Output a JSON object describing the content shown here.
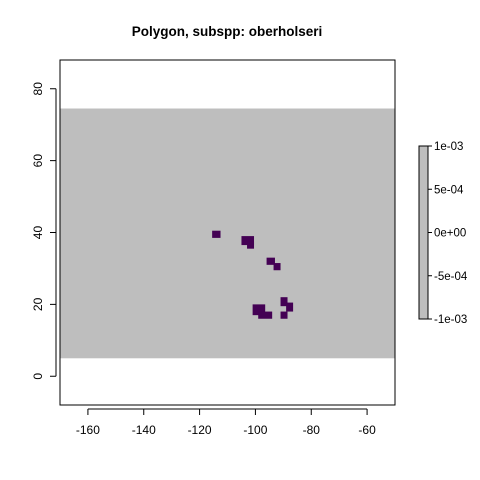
{
  "chart_data": {
    "type": "heatmap",
    "title": "Polygon, subspp: oberholseri",
    "xlabel": "",
    "ylabel": "",
    "xlim": [
      -170,
      -50
    ],
    "ylim": [
      -8,
      88
    ],
    "x_ticks": [
      -160,
      -140,
      -120,
      -100,
      -80,
      -60
    ],
    "y_ticks": [
      0,
      20,
      40,
      60,
      80
    ],
    "x_tick_labels": [
      "-160",
      "-140",
      "-120",
      "-100",
      "-80",
      "-60"
    ],
    "y_tick_labels": [
      "0",
      "20",
      "40",
      "60",
      "80"
    ],
    "background_raster": {
      "xmin": -170,
      "xmax": -50,
      "ymin": 5,
      "ymax": 74.5,
      "value": 0,
      "color": "#bebebe"
    },
    "cell_color": "#440154",
    "cells": [
      {
        "xmin": -115.5,
        "xmax": -112.5,
        "ymin": 38.5,
        "ymax": 40.5
      },
      {
        "xmin": -105,
        "xmax": -100.5,
        "ymin": 36.5,
        "ymax": 39
      },
      {
        "xmin": -103,
        "xmax": -100.5,
        "ymin": 35.5,
        "ymax": 37.5
      },
      {
        "xmin": -96,
        "xmax": -93,
        "ymin": 31,
        "ymax": 33
      },
      {
        "xmin": -93.5,
        "xmax": -91,
        "ymin": 29.5,
        "ymax": 31.5
      },
      {
        "xmin": -101,
        "xmax": -96.5,
        "ymin": 17,
        "ymax": 20
      },
      {
        "xmin": -99,
        "xmax": -94,
        "ymin": 16,
        "ymax": 18
      },
      {
        "xmin": -91,
        "xmax": -88.5,
        "ymin": 19.5,
        "ymax": 22
      },
      {
        "xmin": -89,
        "xmax": -86.5,
        "ymin": 18,
        "ymax": 20.5
      },
      {
        "xmin": -91,
        "xmax": -88.5,
        "ymin": 16,
        "ymax": 18
      }
    ],
    "legend": {
      "placement": "right",
      "labels": [
        "1e-03",
        "5e-04",
        "0e+00",
        "-5e-04",
        "-1e-03"
      ],
      "values": [
        0.001,
        0.0005,
        0,
        -0.0005,
        -0.001
      ],
      "color": "#bebebe"
    },
    "grid": false
  }
}
